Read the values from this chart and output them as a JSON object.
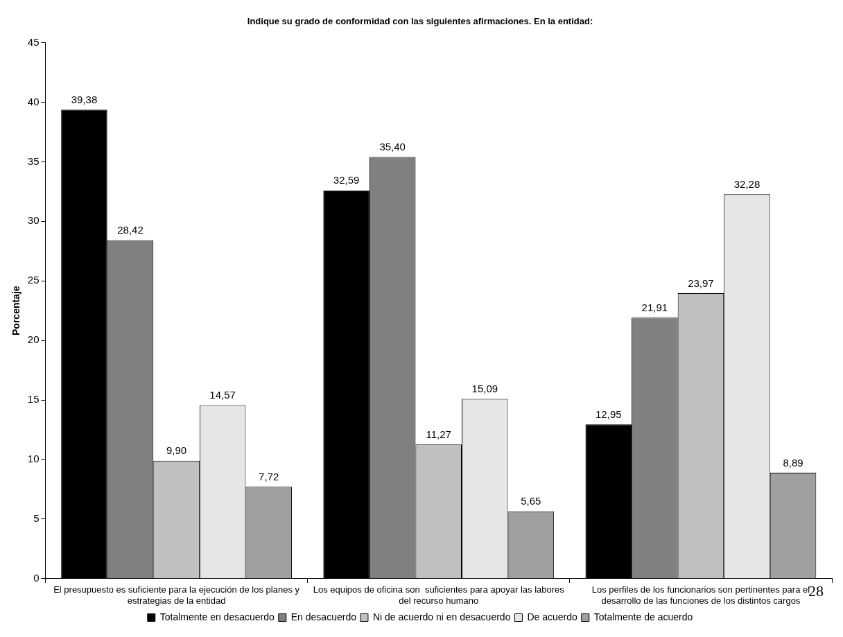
{
  "chart_data": {
    "type": "bar",
    "title": "Indique su grado de conformidad con las siguientes afirmaciones. En la entidad:",
    "ylabel": "Porcentaje",
    "categories": [
      "El presupuesto es suficiente para la ejecución de los planes y estrategias de la entidad",
      "Los equipos de oficina son  suficientes para apoyar las labores del recurso humano",
      "Los perfiles de los funcionarios son pertinentes para el desarrollo de las funciones de los distintos cargos"
    ],
    "series": [
      {
        "name": "Totalmente en desacuerdo",
        "color": "#000000",
        "values": [
          39.38,
          32.59,
          12.95
        ],
        "value_labels": [
          "39,38",
          "32,59",
          "12,95"
        ]
      },
      {
        "name": "En desacuerdo",
        "color": "#808080",
        "values": [
          28.42,
          35.4,
          21.91
        ],
        "value_labels": [
          "28,42",
          "35,40",
          "21,91"
        ]
      },
      {
        "name": "Ni de acuerdo ni en desacuerdo",
        "color": "#c0c0c0",
        "values": [
          9.9,
          11.27,
          23.97
        ],
        "value_labels": [
          "9,90",
          "11,27",
          "23,97"
        ]
      },
      {
        "name": "De acuerdo",
        "color": "#e6e6e6",
        "values": [
          14.57,
          15.09,
          32.28
        ],
        "value_labels": [
          "14,57",
          "15,09",
          "32,28"
        ]
      },
      {
        "name": "Totalmente de acuerdo",
        "color": "#a0a0a0",
        "values": [
          7.72,
          5.65,
          8.89
        ],
        "value_labels": [
          "7,72",
          "5,65",
          "8,89"
        ]
      }
    ],
    "ylim": [
      0,
      45
    ],
    "yticks": [
      0,
      5,
      10,
      15,
      20,
      25,
      30,
      35,
      40,
      45
    ],
    "grid": false,
    "legend": "bottom",
    "annotations": [
      "28"
    ]
  }
}
